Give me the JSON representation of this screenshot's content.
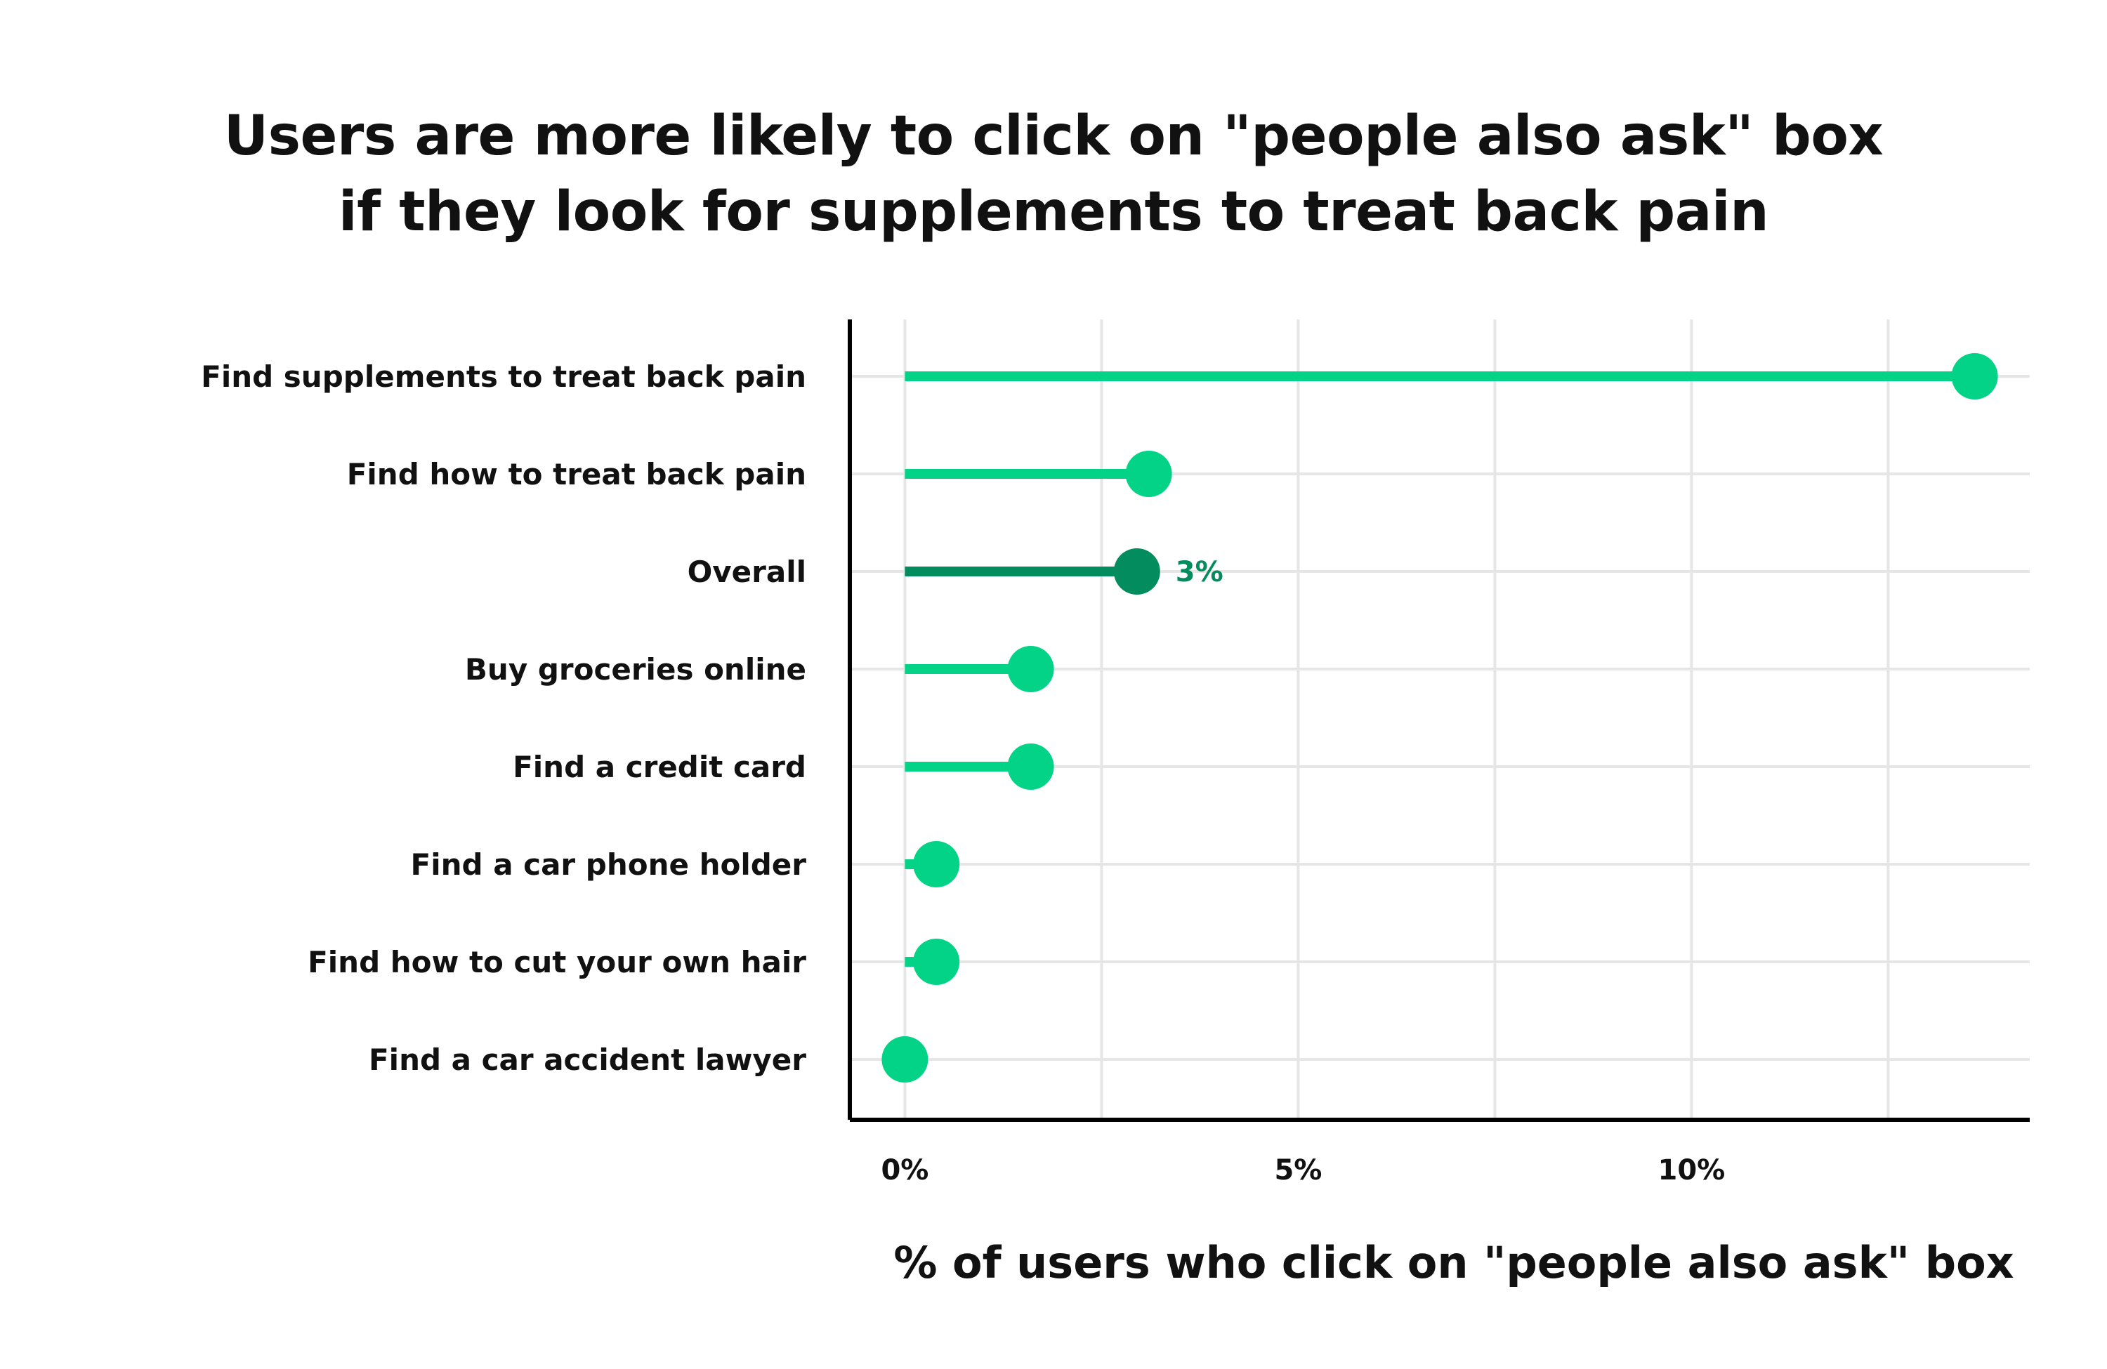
{
  "chart_data": {
    "type": "lollipop",
    "title_lines": [
      "Users are more likely to click on \"people also ask\" box",
      "if they look for supplements to treat back pain"
    ],
    "xlabel": "% of users who click on \"people also ask\" box",
    "ylabel": "",
    "xlim": [
      -0.7,
      14.3
    ],
    "x_ticks": [
      0,
      5,
      10
    ],
    "x_tick_labels": [
      "0%",
      "5%",
      "10%"
    ],
    "grid": true,
    "categories": [
      "Find supplements to treat back pain",
      "Find how to treat back pain",
      "Overall",
      "Buy groceries online",
      "Find a credit card",
      "Find a car phone holder",
      "Find how to cut your own hair",
      "Find a car accident lawyer"
    ],
    "values": [
      13.6,
      3.1,
      2.95,
      1.6,
      1.6,
      0.4,
      0.4,
      0.0
    ],
    "highlight": {
      "category": "Overall",
      "label": "3%",
      "color": "#038c5e"
    },
    "colors": {
      "series": "#02d386",
      "highlight": "#038c5e",
      "grid": "#e6e6e6",
      "axis": "#000000"
    }
  }
}
